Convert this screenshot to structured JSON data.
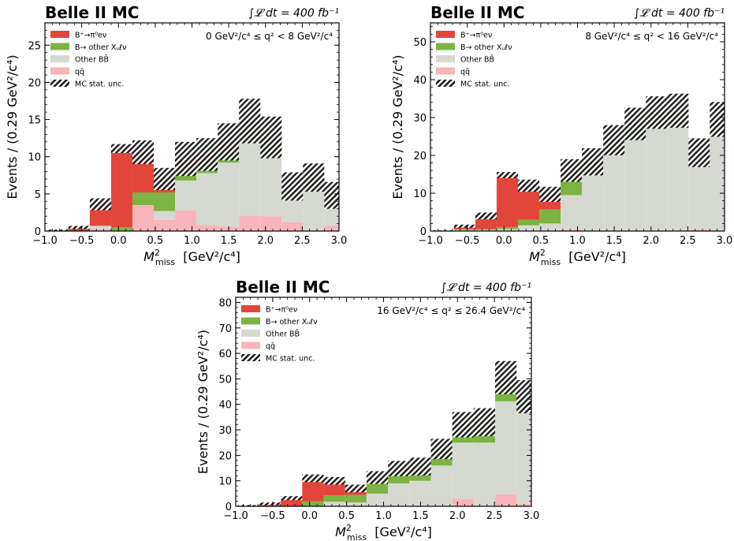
{
  "figure": {
    "x_label_main": "M",
    "x_label_sup": "2",
    "x_label_sub": "miss",
    "x_label_unit": "[GeV²/c⁴]",
    "y_label": "Events / (0.29 GeV²/c⁴)",
    "experiment_label": "Belle II MC",
    "lumi_label": "∫𝓛 dt = 400 fb⁻¹"
  },
  "legend": [
    {
      "label": "B⁺→π⁰eν",
      "color": "#e2463a"
    },
    {
      "label": "B→ other Xᵤℓν",
      "color": "#7cb342"
    },
    {
      "label": "Other BB̄",
      "color": "#d6d9d1"
    },
    {
      "label": "qq̄",
      "color": "#f8b4ba"
    },
    {
      "label": "MC stat. unc.",
      "color": "hatch"
    }
  ],
  "chart_data": [
    {
      "type": "bar",
      "stacked": true,
      "region": "0 GeV²/c⁴ ≤ q² < 8 GeV²/c⁴",
      "bin_edges": [
        -0.97,
        -0.68,
        -0.39,
        -0.1,
        0.19,
        0.48,
        0.77,
        1.06,
        1.35,
        1.64,
        1.93,
        2.22,
        2.51,
        2.8,
        3.09
      ],
      "xlim": [
        -1.0,
        3.0
      ],
      "ylim": [
        0,
        28
      ],
      "y_ticks": [
        0,
        5,
        10,
        15,
        20,
        25
      ],
      "x_ticks": [
        -1.0,
        -0.5,
        0.0,
        0.5,
        1.0,
        1.5,
        2.0,
        2.5,
        3.0
      ],
      "series": [
        {
          "name": "qq̄",
          "values": [
            0,
            0,
            0.3,
            0,
            3.5,
            1.5,
            2.8,
            0.8,
            0.6,
            2.1,
            2.0,
            1.2,
            0,
            0.7
          ]
        },
        {
          "name": "Other BB̄",
          "values": [
            0,
            0,
            0.4,
            0,
            0,
            1.2,
            4.0,
            7.0,
            8.6,
            10.2,
            8.2,
            3.5,
            5.5,
            2.5
          ]
        },
        {
          "name": "B→ other Xᵤℓν",
          "values": [
            0,
            0,
            0,
            0.5,
            1.7,
            2.5,
            1.7,
            1.6,
            2.2,
            1.9,
            1.8,
            1.0,
            1.3,
            1.3
          ]
        },
        {
          "name": "B⁺→π⁰eν",
          "values": [
            0.1,
            0.5,
            2.9,
            10.6,
            5.4,
            1.8,
            1.2,
            0.9,
            0.6,
            0.6,
            0.6,
            0.3,
            0.4,
            0.3
          ]
        }
      ],
      "uncertainty": [
        0.1,
        0.2,
        0.8,
        0.6,
        1.6,
        1.5,
        2.3,
        2.2,
        2.5,
        3.0,
        2.8,
        1.9,
        1.9,
        1.8
      ]
    },
    {
      "type": "bar",
      "stacked": true,
      "region": "8 GeV²/c⁴ ≤ q² < 16 GeV²/c⁴",
      "bin_edges": [
        -0.97,
        -0.68,
        -0.39,
        -0.1,
        0.19,
        0.48,
        0.77,
        1.06,
        1.35,
        1.64,
        1.93,
        2.22,
        2.51,
        2.8,
        3.09
      ],
      "xlim": [
        -1.0,
        3.0
      ],
      "ylim": [
        0,
        55
      ],
      "y_ticks": [
        0,
        10,
        20,
        30,
        40,
        50
      ],
      "x_ticks": [
        -1.0,
        -0.5,
        0.0,
        0.5,
        1.0,
        1.5,
        2.0,
        2.5,
        3.0
      ],
      "series": [
        {
          "name": "qq̄",
          "values": [
            0,
            0,
            0,
            0,
            0,
            0,
            0.5,
            0,
            0,
            0,
            0,
            0,
            0.5,
            0
          ]
        },
        {
          "name": "Other BB̄",
          "values": [
            0,
            0.3,
            0.3,
            0.5,
            1.5,
            2.0,
            9.0,
            15.0,
            20.5,
            24.5,
            28.0,
            28.0,
            19.0,
            27.0
          ]
        },
        {
          "name": "B→ other Xᵤℓν",
          "values": [
            0,
            0.2,
            0.2,
            0.5,
            1.5,
            3.7,
            4.5,
            2.5,
            3.0,
            3.5,
            3.0,
            3.6,
            1.0,
            2.2
          ]
        },
        {
          "name": "B⁺→π⁰eν",
          "values": [
            0.1,
            0.8,
            3.5,
            13.8,
            9.0,
            4.0,
            2.0,
            0.8,
            0.5,
            0.3,
            0.3,
            0.2,
            0.2,
            0.3
          ]
        }
      ],
      "uncertainty": [
        0.1,
        0.4,
        0.9,
        0.8,
        1.6,
        2.0,
        3.0,
        3.6,
        4.0,
        4.3,
        4.3,
        4.5,
        3.8,
        4.6
      ]
    },
    {
      "type": "bar",
      "stacked": true,
      "region": "16 GeV²/c⁴ ≤ q² ≤ 26.4 GeV²/c⁴",
      "bin_edges": [
        -0.97,
        -0.68,
        -0.39,
        -0.1,
        0.19,
        0.48,
        0.77,
        1.06,
        1.35,
        1.64,
        1.93,
        2.22,
        2.51,
        2.8,
        3.09
      ],
      "xlim": [
        -1.0,
        3.0
      ],
      "ylim": [
        0,
        82
      ],
      "y_ticks": [
        0,
        10,
        20,
        30,
        40,
        50,
        60,
        70,
        80
      ],
      "x_ticks": [
        -1.0,
        -0.5,
        0.0,
        0.5,
        1.0,
        1.5,
        2.0,
        2.5,
        3.0
      ],
      "series": [
        {
          "name": "qq̄",
          "values": [
            0,
            0,
            0,
            0,
            0.3,
            0,
            0,
            0,
            0,
            0,
            3.0,
            0,
            4.7,
            1.0
          ]
        },
        {
          "name": "Other BB̄",
          "values": [
            0,
            0,
            0,
            0,
            1.5,
            1.5,
            5.0,
            9.0,
            10.0,
            16.0,
            22.0,
            25.0,
            36.5,
            36.5
          ]
        },
        {
          "name": "B→ other Xᵤℓν",
          "values": [
            0,
            0,
            0,
            2.0,
            2.5,
            3.0,
            5.0,
            5.0,
            5.0,
            6.0,
            6.0,
            7.5,
            8.5,
            5.0
          ]
        },
        {
          "name": "B⁺→π⁰eν",
          "values": [
            0.3,
            1.0,
            3.2,
            9.0,
            5.7,
            2.5,
            1.3,
            0.8,
            0.6,
            0.5,
            1.0,
            0.5,
            0.8,
            0.5
          ]
        }
      ],
      "uncertainty": [
        0.2,
        0.5,
        0.8,
        1.5,
        1.5,
        1.5,
        2.5,
        3.0,
        3.5,
        4.0,
        5.0,
        5.5,
        6.5,
        6.5
      ]
    }
  ]
}
